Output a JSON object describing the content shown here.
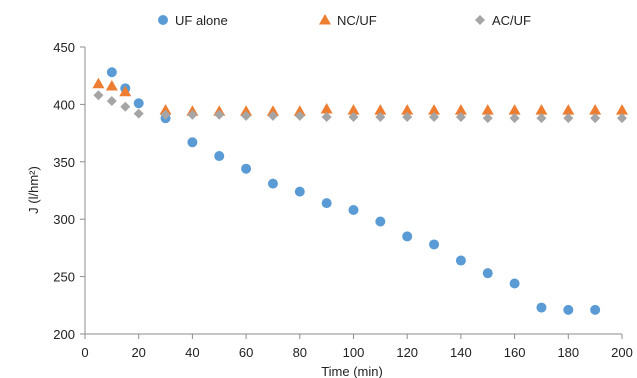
{
  "chart_data": {
    "type": "scatter",
    "xlabel": "Time (min)",
    "ylabel": "J (l/hm²)",
    "xlim": [
      0,
      200
    ],
    "ylim": [
      200,
      450
    ],
    "xticks": [
      0,
      20,
      40,
      60,
      80,
      100,
      120,
      140,
      160,
      180,
      200
    ],
    "yticks": [
      200,
      250,
      300,
      350,
      400,
      450
    ],
    "grid": false,
    "legend_position": "top",
    "series": [
      {
        "name": "UF alone",
        "marker": "circle",
        "color": "#5b9bd5",
        "points": [
          [
            10,
            428
          ],
          [
            15,
            414
          ],
          [
            20,
            401
          ],
          [
            30,
            388
          ],
          [
            40,
            367
          ],
          [
            50,
            355
          ],
          [
            60,
            344
          ],
          [
            70,
            331
          ],
          [
            80,
            324
          ],
          [
            90,
            314
          ],
          [
            100,
            308
          ],
          [
            110,
            298
          ],
          [
            120,
            285
          ],
          [
            130,
            278
          ],
          [
            140,
            264
          ],
          [
            150,
            253
          ],
          [
            160,
            244
          ],
          [
            170,
            223
          ],
          [
            180,
            221
          ],
          [
            190,
            221
          ]
        ]
      },
      {
        "name": "NC/UF",
        "marker": "triangle",
        "color": "#ed7d31",
        "points": [
          [
            5,
            418
          ],
          [
            10,
            416
          ],
          [
            15,
            411
          ],
          [
            30,
            395
          ],
          [
            40,
            394
          ],
          [
            50,
            394
          ],
          [
            60,
            394
          ],
          [
            70,
            394
          ],
          [
            80,
            394
          ],
          [
            90,
            396
          ],
          [
            100,
            395
          ],
          [
            110,
            395
          ],
          [
            120,
            395
          ],
          [
            130,
            395
          ],
          [
            140,
            395
          ],
          [
            150,
            395
          ],
          [
            160,
            395
          ],
          [
            170,
            395
          ],
          [
            180,
            395
          ],
          [
            190,
            395
          ],
          [
            200,
            395
          ]
        ]
      },
      {
        "name": "AC/UF",
        "marker": "diamond",
        "color": "#a5a5a5",
        "points": [
          [
            5,
            408
          ],
          [
            10,
            403
          ],
          [
            15,
            398
          ],
          [
            20,
            392
          ],
          [
            30,
            391
          ],
          [
            40,
            391
          ],
          [
            50,
            391
          ],
          [
            60,
            390
          ],
          [
            70,
            390
          ],
          [
            80,
            390
          ],
          [
            90,
            389
          ],
          [
            100,
            389
          ],
          [
            110,
            389
          ],
          [
            120,
            389
          ],
          [
            130,
            389
          ],
          [
            140,
            389
          ],
          [
            150,
            388
          ],
          [
            160,
            388
          ],
          [
            170,
            388
          ],
          [
            180,
            388
          ],
          [
            190,
            388
          ],
          [
            200,
            388
          ]
        ]
      }
    ]
  }
}
